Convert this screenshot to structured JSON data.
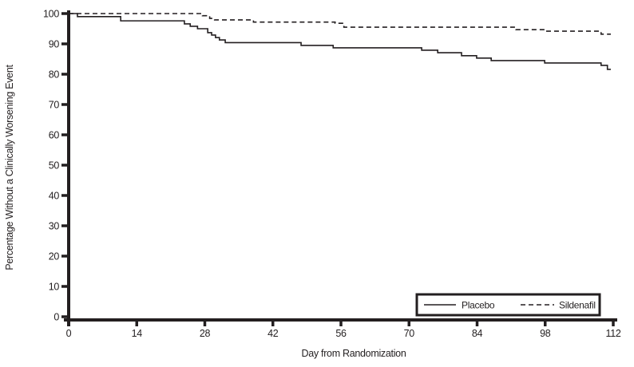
{
  "figure": {
    "background": "#ffffff",
    "ink_color": "#231f20",
    "description": "Kaplan-Meier step plot of percentage without a clinically worsening event vs day from randomization, Placebo (solid) vs Sildenafil (dashed)"
  },
  "chart_data": {
    "type": "line",
    "subtype": "kaplan-meier-step",
    "title": "",
    "xlabel": "Day from Randomization",
    "ylabel": "Percentage Without a Clinically Worsening Event",
    "xlim": [
      0,
      112
    ],
    "ylim": [
      0,
      100
    ],
    "xticks": [
      0,
      14,
      28,
      42,
      56,
      70,
      84,
      98,
      112
    ],
    "yticks": [
      0,
      10,
      20,
      30,
      40,
      50,
      60,
      70,
      80,
      90,
      100
    ],
    "grid": false,
    "legend_position": "bottom-right-inset",
    "series": [
      {
        "name": "Placebo",
        "line_style": "solid",
        "end_day": 111.5,
        "final_value": 81.6,
        "points": [
          [
            0,
            100
          ],
          [
            1.8,
            99.0
          ],
          [
            10.7,
            97.6
          ],
          [
            23.8,
            96.6
          ],
          [
            25,
            95.8
          ],
          [
            26.5,
            95.0
          ],
          [
            28.6,
            93.7
          ],
          [
            29.4,
            92.9
          ],
          [
            30.2,
            92.1
          ],
          [
            31,
            91.3
          ],
          [
            32.2,
            90.4
          ],
          [
            47.8,
            89.5
          ],
          [
            54.4,
            88.7
          ],
          [
            72.6,
            87.9
          ],
          [
            75.9,
            87.1
          ],
          [
            80.8,
            86.1
          ],
          [
            83.9,
            85.3
          ],
          [
            86.9,
            84.5
          ],
          [
            97.9,
            83.7
          ],
          [
            109.5,
            82.9
          ],
          [
            110.8,
            81.6
          ]
        ]
      },
      {
        "name": "Sildenafil",
        "line_style": "dashed",
        "end_day": 111.5,
        "final_value": 93.2,
        "points": [
          [
            0,
            100
          ],
          [
            27.5,
            99.3
          ],
          [
            29,
            98.4
          ],
          [
            30,
            97.9
          ],
          [
            38,
            97.2
          ],
          [
            54.8,
            96.8
          ],
          [
            56.6,
            95.5
          ],
          [
            92,
            94.7
          ],
          [
            97.9,
            94.2
          ],
          [
            109.5,
            93.2
          ]
        ]
      }
    ]
  }
}
